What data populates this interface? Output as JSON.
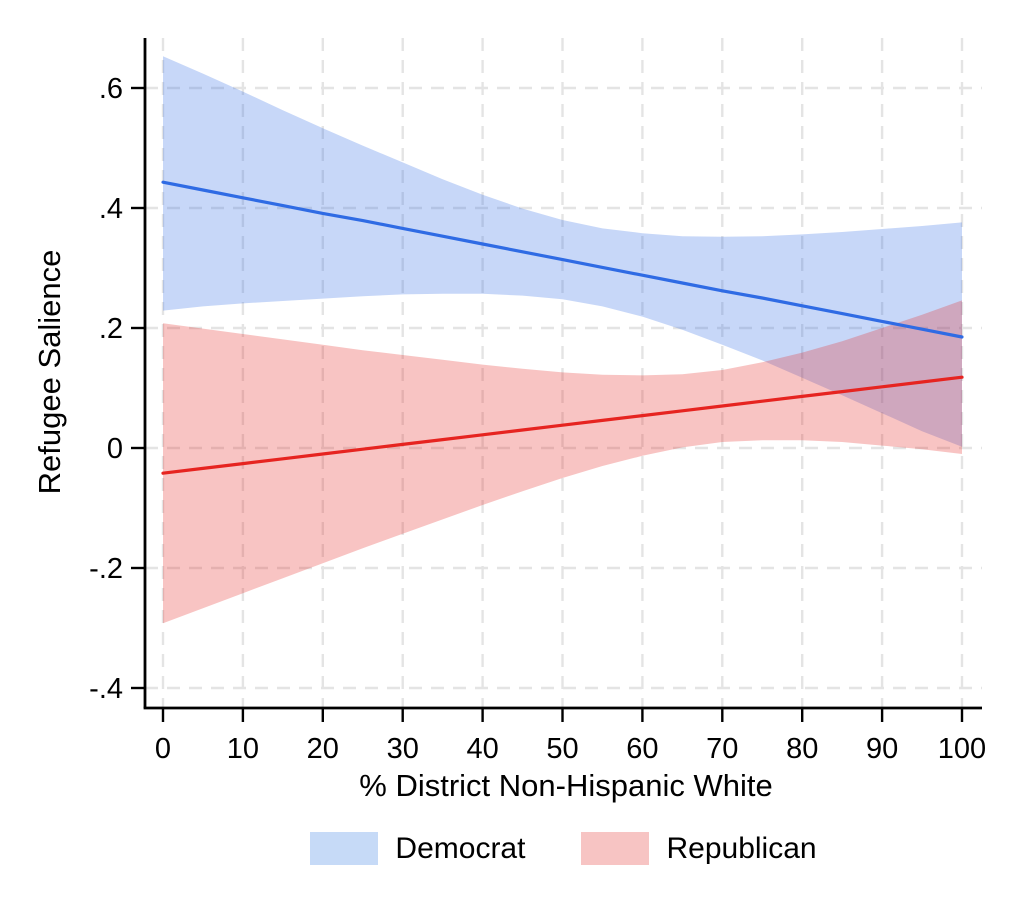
{
  "chart_data": {
    "type": "line",
    "title": "",
    "xlabel": "% District Non-Hispanic White",
    "ylabel": "Refugee Salience",
    "xlim": [
      0,
      100
    ],
    "ylim": [
      -0.43,
      0.68
    ],
    "grid": "dashed-both-axes",
    "legend_position": "bottom",
    "xticks": {
      "values": [
        0,
        10,
        20,
        30,
        40,
        50,
        60,
        70,
        80,
        90,
        100
      ],
      "labels": [
        "0",
        "10",
        "20",
        "30",
        "40",
        "50",
        "60",
        "70",
        "80",
        "90",
        "100"
      ]
    },
    "yticks": {
      "values": [
        0.6,
        0.4,
        0.2,
        0.0,
        -0.2,
        -0.4
      ],
      "labels": [
        ".6",
        ".4",
        ".2",
        "0",
        "-.2",
        "-.4"
      ]
    },
    "x": [
      0,
      5,
      10,
      15,
      20,
      25,
      30,
      35,
      40,
      45,
      50,
      55,
      60,
      65,
      70,
      75,
      80,
      85,
      90,
      95,
      100
    ],
    "series": [
      {
        "name": "Democrat",
        "line_color": "#2f6be4",
        "band_hex": "#c6daf7",
        "fit": [
          0.443,
          0.43,
          0.417,
          0.404,
          0.391,
          0.379,
          0.366,
          0.353,
          0.34,
          0.327,
          0.314,
          0.301,
          0.288,
          0.275,
          0.262,
          0.25,
          0.237,
          0.224,
          0.211,
          0.198,
          0.185
        ],
        "ci_high": [
          0.653,
          0.624,
          0.594,
          0.563,
          0.533,
          0.504,
          0.476,
          0.448,
          0.422,
          0.399,
          0.38,
          0.366,
          0.358,
          0.353,
          0.352,
          0.353,
          0.356,
          0.36,
          0.365,
          0.37,
          0.376
        ],
        "ci_low": [
          0.229,
          0.236,
          0.241,
          0.245,
          0.249,
          0.253,
          0.256,
          0.257,
          0.257,
          0.254,
          0.248,
          0.236,
          0.219,
          0.197,
          0.172,
          0.146,
          0.117,
          0.088,
          0.058,
          0.028,
          0.002
        ]
      },
      {
        "name": "Republican",
        "line_color": "#e62420",
        "band_hex": "#f7c4c3",
        "fit": [
          -0.042,
          -0.034,
          -0.026,
          -0.018,
          -0.01,
          -0.002,
          0.006,
          0.014,
          0.022,
          0.03,
          0.038,
          0.046,
          0.054,
          0.062,
          0.07,
          0.078,
          0.086,
          0.094,
          0.102,
          0.11,
          0.118
        ],
        "ci_high": [
          0.208,
          0.199,
          0.19,
          0.181,
          0.172,
          0.163,
          0.155,
          0.147,
          0.139,
          0.132,
          0.126,
          0.122,
          0.121,
          0.123,
          0.13,
          0.143,
          0.159,
          0.178,
          0.2,
          0.222,
          0.246
        ],
        "ci_low": [
          -0.292,
          -0.267,
          -0.242,
          -0.217,
          -0.192,
          -0.167,
          -0.143,
          -0.119,
          -0.095,
          -0.072,
          -0.05,
          -0.03,
          -0.013,
          0.001,
          0.01,
          0.013,
          0.013,
          0.01,
          0.004,
          -0.002,
          -0.01
        ]
      }
    ],
    "band_opacity": 0.27,
    "colors": {
      "axis": "#000000",
      "gridline": "#e4e4e4",
      "background": "#ffffff"
    }
  },
  "legend": {
    "items": [
      {
        "label": "Democrat"
      },
      {
        "label": "Republican"
      }
    ]
  }
}
